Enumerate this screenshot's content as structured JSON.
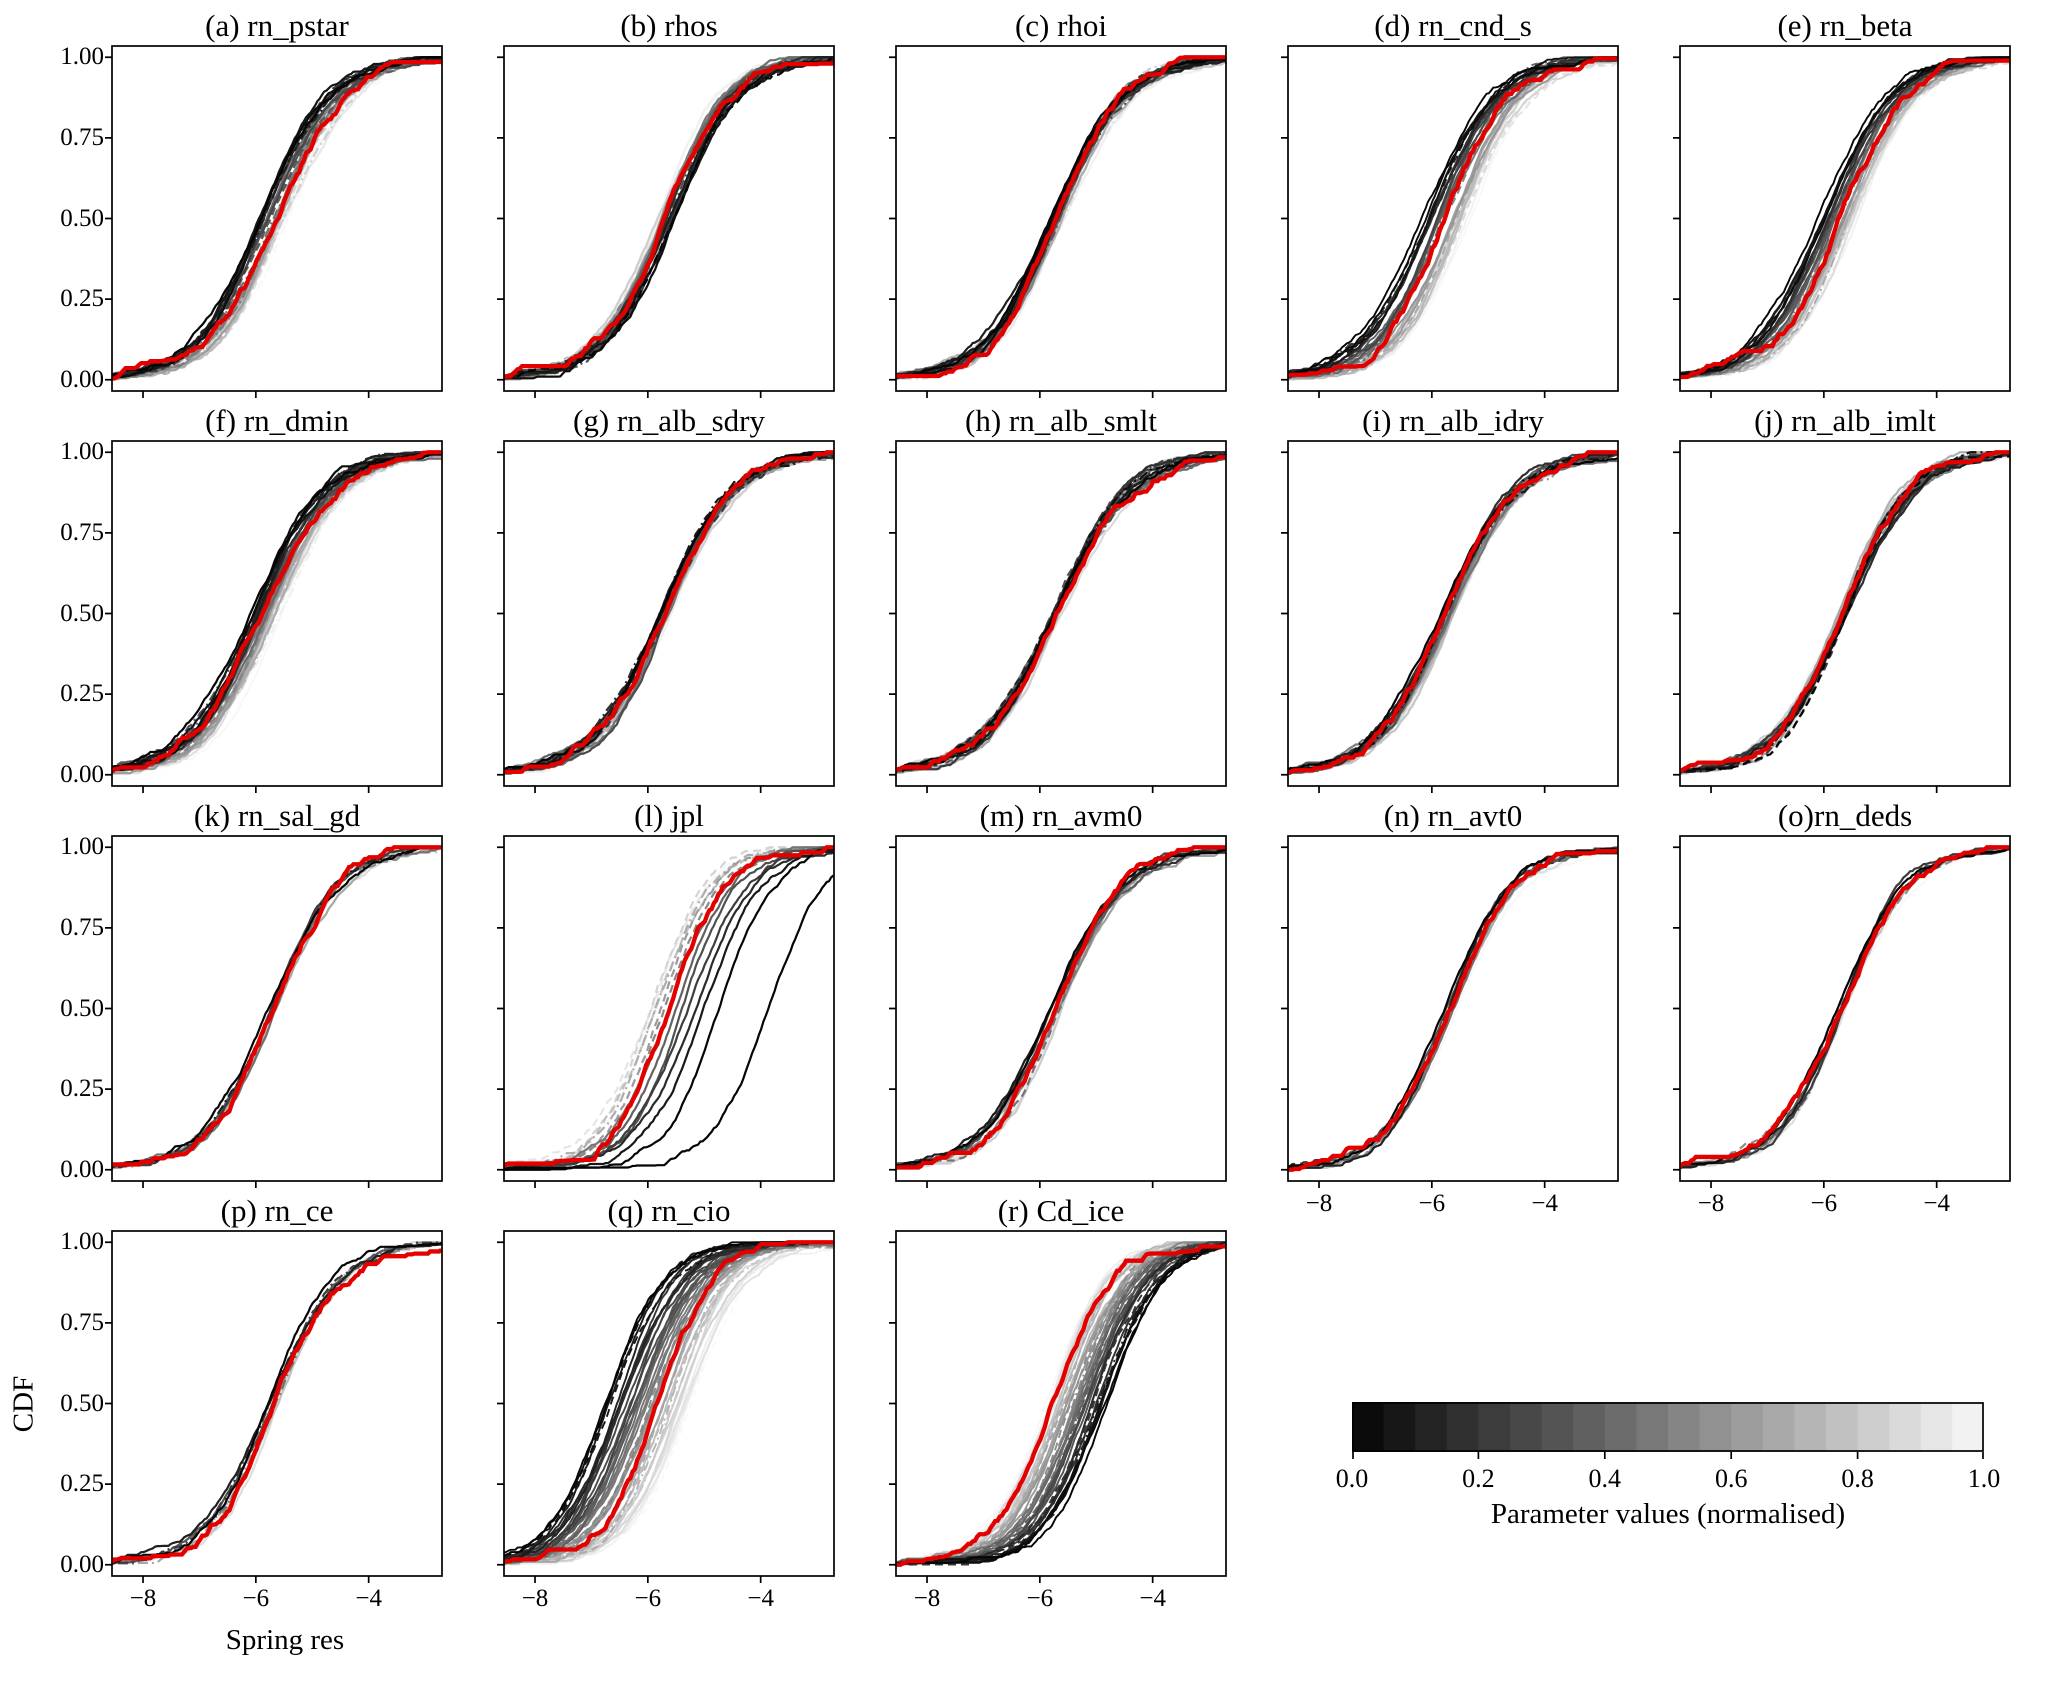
{
  "chart_data": {
    "type": "cdf",
    "description": "Grid of 18 CDF ensemble panels; grayscale curves colored by normalised parameter value (black=0, white=1), thick red reference CDF in each panel.",
    "xlabel": "Spring res",
    "ylabel": "CDF",
    "xlim": [
      -8.55,
      -2.7
    ],
    "ylim": [
      -0.035,
      1.035
    ],
    "xticks": {
      "values": [
        -8,
        -6,
        -4
      ],
      "labels": [
        "−8",
        "−6",
        "−4"
      ]
    },
    "yticks": {
      "values": [
        0,
        0.25,
        0.5,
        0.75,
        1
      ],
      "labels": [
        "0.00",
        "0.25",
        "0.50",
        "0.75",
        "1.00"
      ]
    },
    "red_curve_color": "#e50000",
    "grid": false,
    "colorbar": {
      "label": "Parameter values (normalised)",
      "tick_labels": [
        "0.0",
        "0.2",
        "0.4",
        "0.6",
        "0.8",
        "1.0"
      ],
      "min": 0,
      "max": 1,
      "cmap": "black-to-white",
      "n_segments": 20
    },
    "panels": [
      {
        "id": "a",
        "title": "(a) rn_pstar",
        "n_curves": 30,
        "median_at_param_0": -5.95,
        "median_at_param_1": -5.45,
        "sigmoid_width": 0.6,
        "red_curve_median": -5.62
      },
      {
        "id": "b",
        "title": "(b) rhos",
        "n_curves": 30,
        "median_at_param_0": -5.58,
        "median_at_param_1": -5.8,
        "sigmoid_width": 0.58,
        "red_curve_median": -5.7
      },
      {
        "id": "c",
        "title": "(c) rhoi",
        "n_curves": 30,
        "median_at_param_0": -5.78,
        "median_at_param_1": -5.62,
        "sigmoid_width": 0.6,
        "red_curve_median": -5.7
      },
      {
        "id": "d",
        "title": "(d) rn_cnd_s",
        "n_curves": 35,
        "median_at_param_0": -6.15,
        "median_at_param_1": -5.35,
        "sigmoid_width": 0.58,
        "red_curve_median": -5.78
      },
      {
        "id": "e",
        "title": "(e) rn_beta",
        "n_curves": 35,
        "median_at_param_0": -6.05,
        "median_at_param_1": -5.42,
        "sigmoid_width": 0.58,
        "red_curve_median": -5.7
      },
      {
        "id": "f",
        "title": "(f) rn_dmin",
        "n_curves": 30,
        "median_at_param_0": -6.05,
        "median_at_param_1": -5.6,
        "sigmoid_width": 0.62,
        "red_curve_median": -5.88
      },
      {
        "id": "g",
        "title": "(g) rn_alb_sdry",
        "n_curves": 25,
        "median_at_param_0": -5.74,
        "median_at_param_1": -5.64,
        "sigmoid_width": 0.62,
        "red_curve_median": -5.68
      },
      {
        "id": "h",
        "title": "(h) rn_alb_smlt",
        "n_curves": 25,
        "median_at_param_0": -5.74,
        "median_at_param_1": -5.66,
        "sigmoid_width": 0.66,
        "red_curve_median": -5.7
      },
      {
        "id": "i",
        "title": "(i) rn_alb_idry",
        "n_curves": 25,
        "median_at_param_0": -5.8,
        "median_at_param_1": -5.62,
        "sigmoid_width": 0.62,
        "red_curve_median": -5.7
      },
      {
        "id": "j",
        "title": "(j) rn_alb_imlt",
        "n_curves": 25,
        "median_at_param_0": -5.62,
        "median_at_param_1": -5.72,
        "sigmoid_width": 0.6,
        "red_curve_median": -5.66
      },
      {
        "id": "k",
        "title": "(k) rn_sal_gd",
        "n_curves": 10,
        "median_at_param_0": -5.73,
        "median_at_param_1": -5.67,
        "sigmoid_width": 0.6,
        "red_curve_median": -5.7
      },
      {
        "id": "l",
        "title": "(l) jpl",
        "n_curves": 14,
        "median_at_param_0": -4.75,
        "median_at_param_1": -5.95,
        "sigmoid_width": 0.5,
        "red_curve_median": -5.62,
        "median_exponent": 2.2,
        "outlier_median": -3.85,
        "dashed_fraction": 0.35
      },
      {
        "id": "m",
        "title": "(m) rn_avm0",
        "n_curves": 12,
        "median_at_param_0": -5.78,
        "median_at_param_1": -5.6,
        "sigmoid_width": 0.6,
        "red_curve_median": -5.7
      },
      {
        "id": "n",
        "title": "(n) rn_avt0",
        "n_curves": 10,
        "median_at_param_0": -5.72,
        "median_at_param_1": -5.6,
        "sigmoid_width": 0.58,
        "red_curve_median": -5.66
      },
      {
        "id": "o",
        "title": "(o)rn_deds",
        "n_curves": 10,
        "median_at_param_0": -5.72,
        "median_at_param_1": -5.66,
        "sigmoid_width": 0.58,
        "red_curve_median": -5.69
      },
      {
        "id": "p",
        "title": "(p) rn_ce",
        "n_curves": 10,
        "median_at_param_0": -5.76,
        "median_at_param_1": -5.6,
        "sigmoid_width": 0.58,
        "red_curve_median": -5.66
      },
      {
        "id": "q",
        "title": "(q) rn_cio",
        "n_curves": 45,
        "median_at_param_0": -6.75,
        "median_at_param_1": -5.25,
        "sigmoid_width": 0.52,
        "red_curve_median": -5.82
      },
      {
        "id": "r",
        "title": "(r) Cd_ice",
        "n_curves": 45,
        "median_at_param_0": -4.85,
        "median_at_param_1": -5.9,
        "sigmoid_width": 0.52,
        "red_curve_median": -5.78
      }
    ]
  }
}
